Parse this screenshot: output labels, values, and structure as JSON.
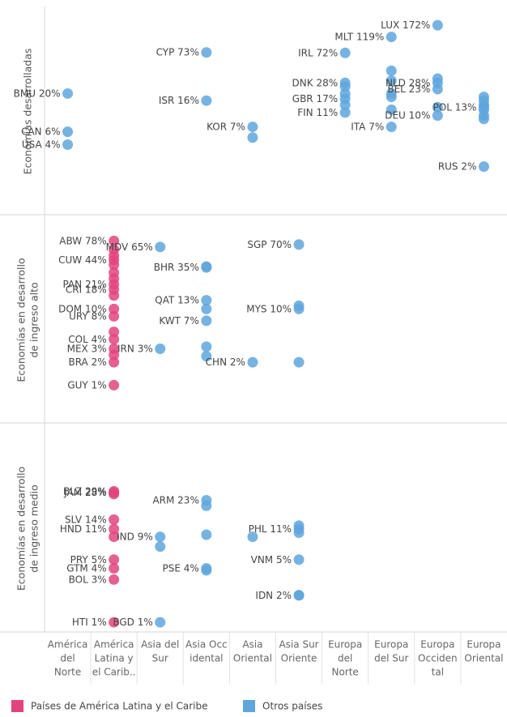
{
  "chart_data": {
    "type": "strip",
    "log_scale": true,
    "categories": [
      [
        "América",
        "del",
        "Norte"
      ],
      [
        "América",
        "Latina y",
        "el Carib.."
      ],
      [
        "Asia del",
        "Sur"
      ],
      [
        "Asia Occ",
        "idental"
      ],
      [
        "Asia",
        "Oriental"
      ],
      [
        "Asia Sur",
        "Oriente"
      ],
      [
        "Europa",
        "del",
        "Norte"
      ],
      [
        "Europa",
        "del Sur"
      ],
      [
        "Europa",
        "Occiden",
        "tal"
      ],
      [
        "Europa",
        "Oriental"
      ]
    ],
    "legend": [
      {
        "name": "Países de América Latina y el Caribe",
        "color": "#e2447d"
      },
      {
        "name": "Otros países",
        "color": "#5ea6de"
      }
    ],
    "panels": [
      {
        "title": [
          "Economías desarrolladas"
        ],
        "ylim": [
          0.44,
          295
        ],
        "series": [
          {
            "x": [
              0,
              0,
              0,
              3,
              3,
              4,
              4,
              6,
              6,
              6,
              6,
              6,
              6,
              6,
              7,
              7,
              7,
              7,
              7,
              7,
              7,
              8,
              8,
              8,
              8,
              8,
              8,
              9,
              9,
              9,
              9,
              9,
              9,
              9,
              9
            ],
            "codes": [
              "BMU",
              "CAN",
              "USA",
              "CYP",
              "ISR",
              "KOR",
              null,
              "IRL",
              "DNK",
              "GBR",
              "FIN",
              null,
              null,
              null,
              "MLT",
              "ITA",
              null,
              null,
              null,
              null,
              null,
              "LUX",
              "NLD",
              "BEL",
              "DEU",
              null,
              null,
              "POL",
              "RUS",
              null,
              null,
              null,
              null,
              null,
              null
            ],
            "values": [
              20,
              6,
              4,
              73,
              16,
              7,
              5,
              72,
              28,
              17,
              11,
              25,
              20,
              14,
              119,
              7,
              41,
              30,
              20,
              18,
              12,
              172,
              28,
              23,
              10,
              32,
              13,
              13,
              2,
              18,
              16,
              14,
              12,
              10,
              9
            ],
            "value_labels": [
              "20%",
              "6%",
              "4%",
              "73%",
              "16%",
              "7%",
              null,
              "72%",
              "28%",
              "17%",
              "11%",
              null,
              null,
              null,
              "119%",
              "7%",
              null,
              null,
              null,
              null,
              null,
              "172%",
              "28%",
              "23%",
              "10%",
              null,
              null,
              "13%",
              "2%",
              null,
              null,
              null,
              null,
              null,
              null
            ]
          }
        ]
      },
      {
        "title": [
          "Economías en desarrollo",
          "de ingreso alto"
        ],
        "ylim": [
          0.32,
          160
        ],
        "series": [
          {
            "x": [
              1,
              1,
              1,
              1,
              1,
              1,
              1,
              1,
              1,
              1,
              1,
              1,
              1,
              1,
              1,
              1,
              1,
              1
            ],
            "codes": [
              "ABW",
              "CUW",
              "PAN",
              "CRI",
              "DOM",
              "URY",
              "COL",
              "MEX",
              "BRA",
              "GUY",
              null,
              null,
              null,
              null,
              null,
              null,
              null,
              null
            ],
            "values": [
              78,
              44,
              21,
              18,
              10,
              8,
              4,
              3,
              2,
              1,
              60,
              50,
              38,
              30,
              25,
              15,
              5,
              2.5
            ],
            "value_labels": [
              "78%",
              "44%",
              "21%",
              "18%",
              "10%",
              "8%",
              "4%",
              "3%",
              "2%",
              "1%",
              null,
              null,
              null,
              null,
              null,
              null,
              null,
              null
            ]
          },
          {
            "x": [
              2,
              2,
              3,
              3,
              3,
              3,
              3,
              3,
              3,
              4,
              5,
              5,
              5,
              5
            ],
            "codes": [
              "MDV",
              "IRN",
              "BHR",
              "QAT",
              "KWT",
              null,
              null,
              null,
              null,
              "CHN",
              "SGP",
              "MYS",
              null,
              null
            ],
            "values": [
              65,
              3,
              35,
              13,
              7,
              36,
              10,
              3.2,
              2.4,
              2,
              70,
              10,
              11,
              2
            ],
            "value_labels": [
              "65%",
              "3%",
              "35%",
              "13%",
              "7%",
              null,
              null,
              null,
              null,
              "2%",
              "70%",
              "10%",
              null,
              null
            ]
          }
        ]
      },
      {
        "title": [
          "Economías en desarrollo",
          "de ingreso medio"
        ],
        "ylim": [
          0.78,
          158
        ],
        "series": [
          {
            "x": [
              1,
              1,
              1,
              1,
              1,
              1,
              1,
              1,
              1,
              1
            ],
            "codes": [
              "BLZ",
              "JAM",
              "SLV",
              "HND",
              "PRY",
              "GTM",
              "BOL",
              "HTI",
              null,
              null
            ],
            "values": [
              29,
              28,
              14,
              11,
              5,
              4,
              3,
              1,
              9,
              27
            ],
            "value_labels": [
              "29%",
              "28%",
              "14%",
              "11%",
              "5%",
              "4%",
              "3%",
              "1%",
              null,
              null
            ]
          },
          {
            "x": [
              2,
              2,
              2,
              3,
              3,
              3,
              3,
              3,
              4,
              5,
              5,
              5,
              5,
              5,
              5
            ],
            "codes": [
              "IND",
              "BGD",
              null,
              "ARM",
              "PSE",
              null,
              null,
              null,
              null,
              "PHL",
              "VNM",
              "IDN",
              null,
              null,
              null
            ],
            "values": [
              9,
              1,
              7,
              23,
              4,
              20,
              9.5,
              3.8,
              9,
              11,
              5,
              2,
              12,
              10,
              2
            ],
            "value_labels": [
              "9%",
              "1%",
              null,
              "23%",
              "4%",
              null,
              null,
              null,
              null,
              "11%",
              "5%",
              "2%",
              null,
              null,
              null
            ]
          }
        ]
      }
    ]
  }
}
